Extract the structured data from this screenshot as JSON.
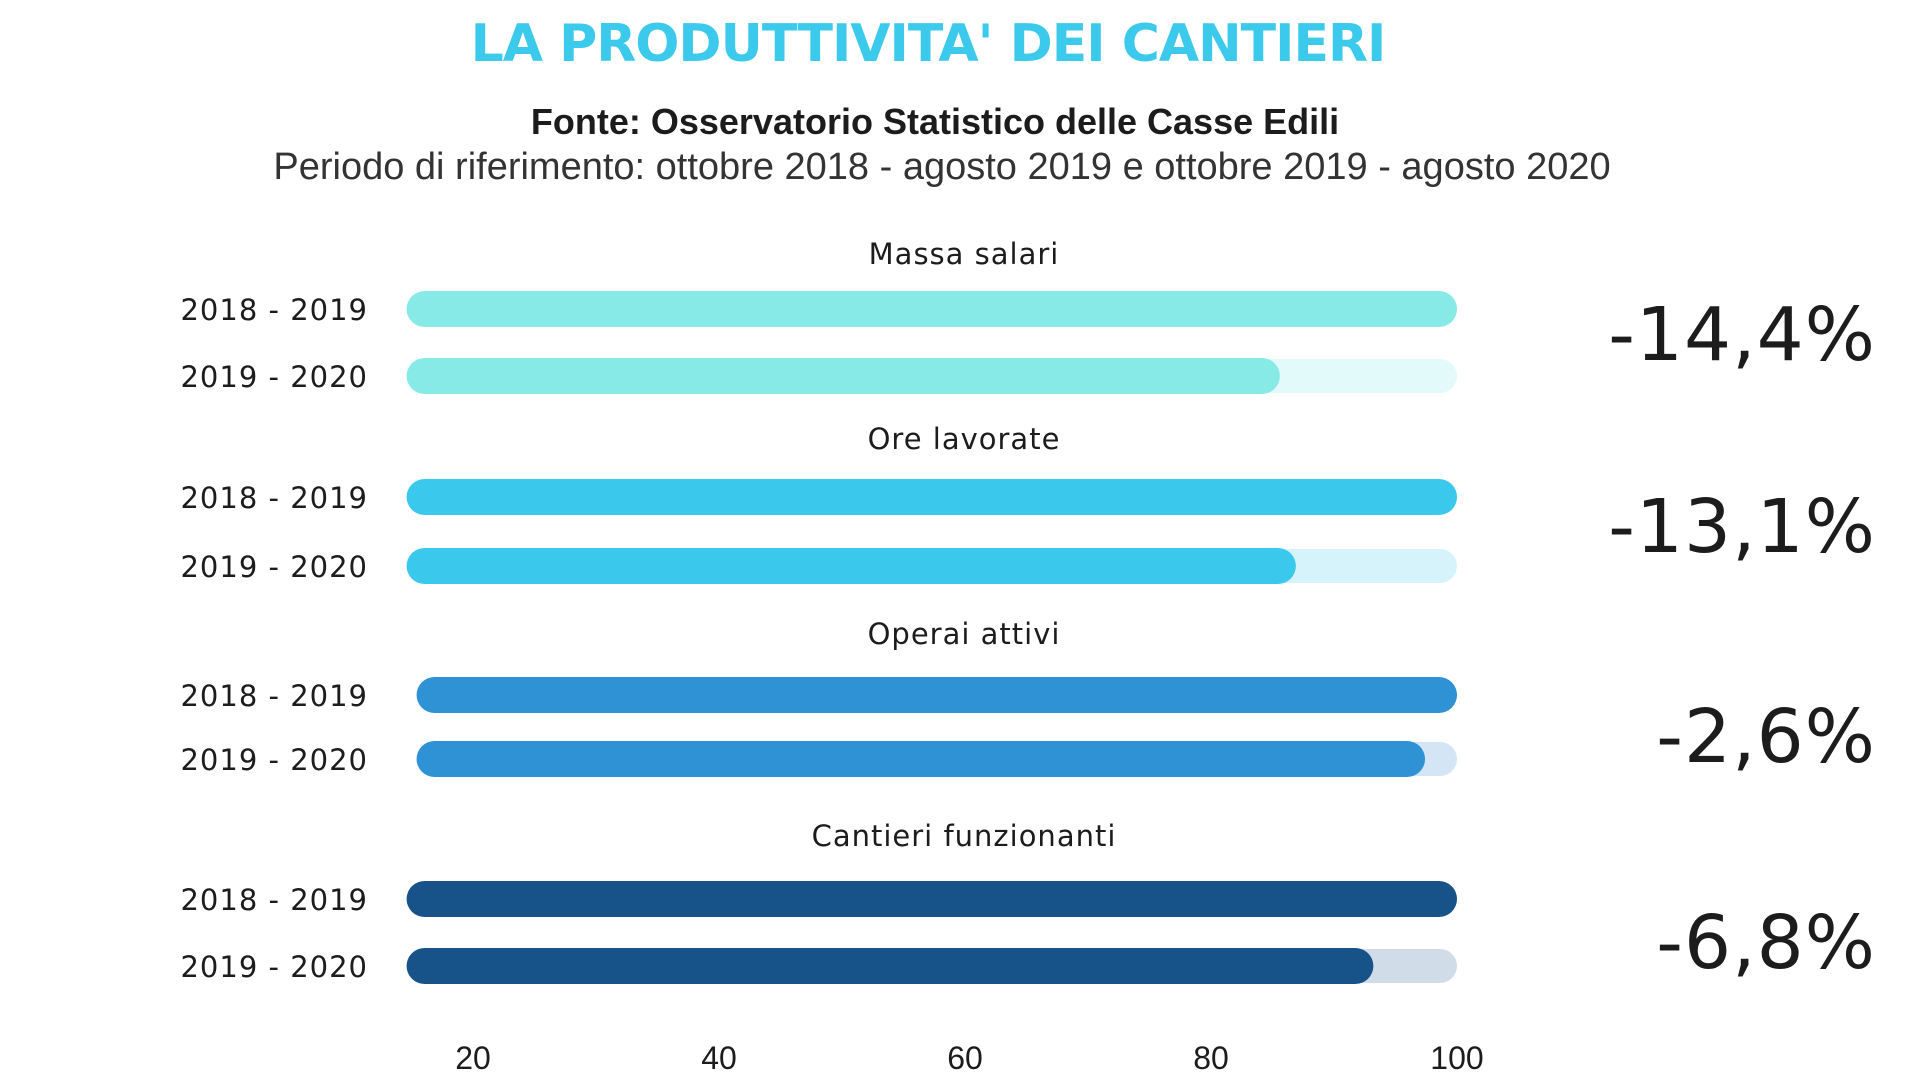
{
  "header": {
    "title": "LA PRODUTTIVITA' DEI CANTIERI",
    "source": "Fonte: Osservatorio Statistico delle Casse Edili",
    "period": "Periodo di riferimento: ottobre 2018 - agosto 2019 e ottobre 2019 - agosto 2020"
  },
  "colors": {
    "title": "#3BC9EC",
    "text": "#1C1C1C"
  },
  "chart_data": {
    "type": "bar",
    "orientation": "horizontal",
    "title": "LA PRODUTTIVITA' DEI CANTIERI",
    "subtitle": "Fonte: Osservatorio Statistico delle Casse Edili",
    "note": "Periodo di riferimento: ottobre 2018 - agosto 2019 e ottobre 2019 - agosto 2020",
    "xlabel": "",
    "ylabel": "",
    "xlim": [
      14.6,
      100
    ],
    "x_ticks": [
      20,
      40,
      60,
      80,
      100
    ],
    "x_tick_labels": [
      "20",
      "40",
      "60",
      "80",
      "100"
    ],
    "grid": false,
    "legend": "none",
    "row_labels": [
      "2018 - 2019",
      "2019 - 2020"
    ],
    "groups": [
      {
        "name": "Massa salari",
        "values": [
          100,
          85.6
        ],
        "change_label": "-14,4%",
        "color": "#88EAE6",
        "track_color": "#E3FAFB"
      },
      {
        "name": "Ore lavorate",
        "values": [
          100,
          86.9
        ],
        "change_label": "-13,1%",
        "color": "#3AC8EC",
        "track_color": "#D6F3FC"
      },
      {
        "name": "Operai attivi",
        "values": [
          100,
          97.4
        ],
        "change_label": "-2,6%",
        "color": "#2E92D4",
        "track_color": "#D4E6F5"
      },
      {
        "name": "Cantieri funzionanti",
        "values": [
          100,
          93.2
        ],
        "change_label": "-6,8%",
        "color": "#175389",
        "track_color": "#D0DCE7"
      }
    ]
  }
}
